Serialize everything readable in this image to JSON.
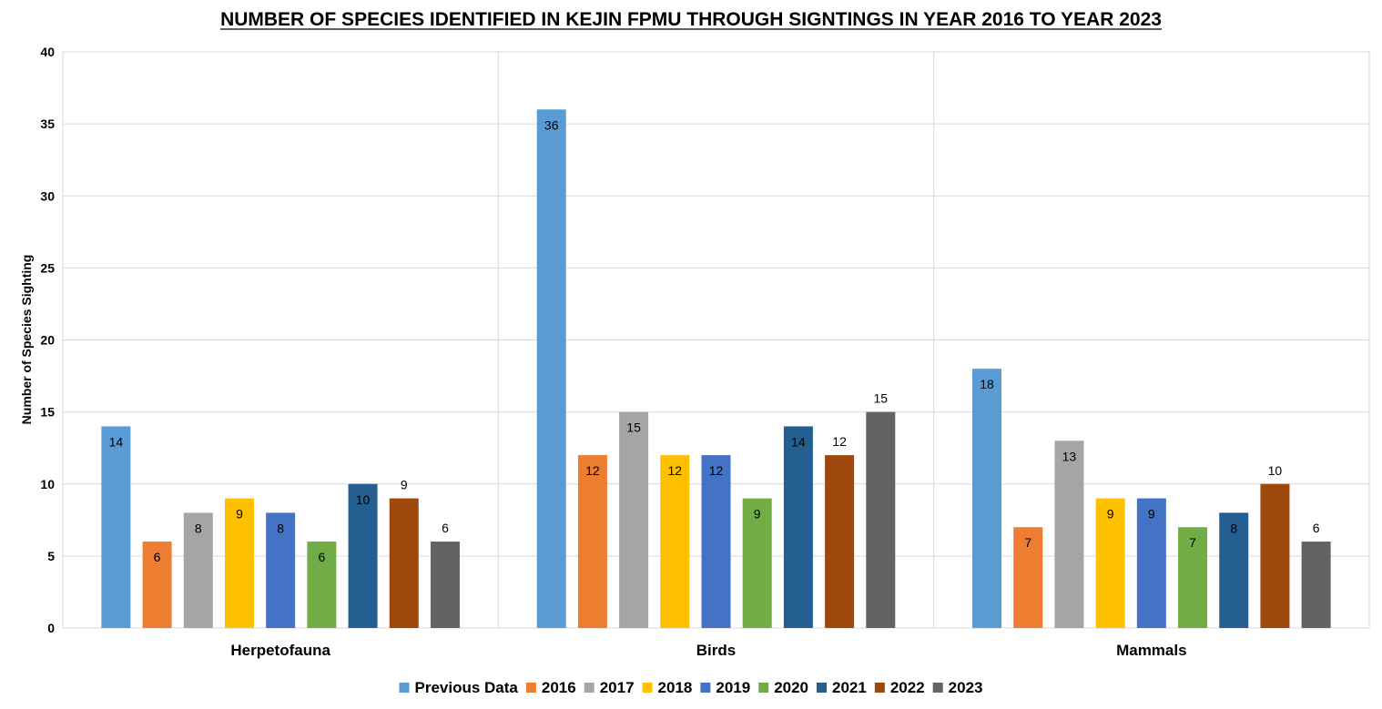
{
  "chart_data": {
    "type": "bar",
    "title": "NUMBER OF SPECIES IDENTIFIED IN KEJIN FPMU THROUGH SIGNTINGS IN YEAR 2016 TO YEAR 2023",
    "ylabel": "Number of Species Sighting",
    "xlabel": "",
    "ylim": [
      0,
      40
    ],
    "yticks": [
      0,
      5,
      10,
      15,
      20,
      25,
      30,
      35,
      40
    ],
    "grid": true,
    "legend_position": "bottom",
    "categories": [
      "Herpetofauna",
      "Birds",
      "Mammals"
    ],
    "series": [
      {
        "name": "Previous Data",
        "color": "#5B9BD5",
        "values": [
          14,
          36,
          18
        ]
      },
      {
        "name": "2016",
        "color": "#ED7D31",
        "values": [
          6,
          12,
          7
        ]
      },
      {
        "name": "2017",
        "color": "#A5A5A5",
        "values": [
          8,
          15,
          13
        ]
      },
      {
        "name": "2018",
        "color": "#FFC000",
        "values": [
          9,
          12,
          9
        ]
      },
      {
        "name": "2019",
        "color": "#4472C4",
        "values": [
          8,
          12,
          9
        ]
      },
      {
        "name": "2020",
        "color": "#70AD47",
        "values": [
          6,
          9,
          7
        ]
      },
      {
        "name": "2021",
        "color": "#255E91",
        "values": [
          10,
          14,
          8
        ]
      },
      {
        "name": "2022",
        "color": "#9E480E",
        "values": [
          9,
          12,
          10
        ]
      },
      {
        "name": "2023",
        "color": "#636363",
        "values": [
          6,
          15,
          6
        ]
      }
    ]
  }
}
